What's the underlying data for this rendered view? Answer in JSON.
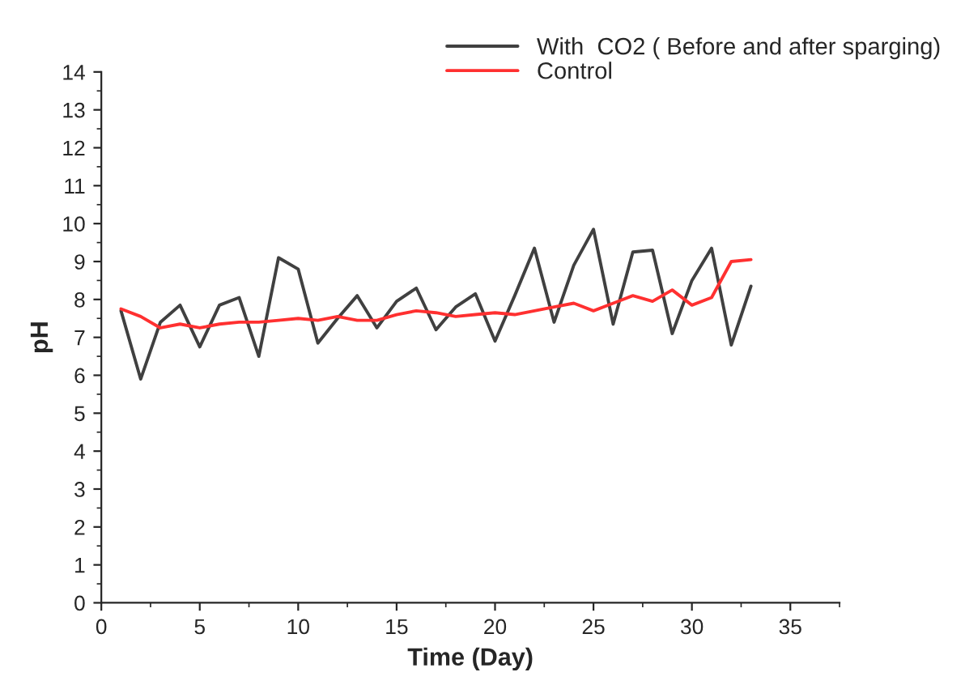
{
  "chart_data": {
    "type": "line",
    "xlabel": "Time (Day)",
    "ylabel": "pH",
    "x": [
      1,
      2,
      3,
      4,
      5,
      6,
      7,
      8,
      9,
      10,
      11,
      12,
      13,
      14,
      15,
      16,
      17,
      18,
      19,
      20,
      21,
      22,
      23,
      24,
      25,
      26,
      27,
      28,
      29,
      30,
      31,
      32,
      33
    ],
    "series": [
      {
        "name": "With  CO2 ( Before and after sparging)",
        "color": "#404040",
        "values": [
          7.7,
          5.9,
          7.4,
          7.85,
          6.75,
          7.85,
          8.05,
          6.5,
          9.1,
          8.8,
          6.85,
          7.5,
          8.1,
          7.25,
          7.95,
          8.3,
          7.2,
          7.8,
          8.15,
          6.9,
          8.1,
          9.35,
          7.4,
          8.9,
          9.85,
          7.35,
          9.25,
          9.3,
          7.1,
          8.5,
          9.35,
          6.8,
          8.35
        ]
      },
      {
        "name": "Control",
        "color": "#ff3030",
        "values": [
          7.75,
          7.55,
          7.25,
          7.35,
          7.25,
          7.35,
          7.4,
          7.4,
          7.45,
          7.5,
          7.45,
          7.55,
          7.45,
          7.45,
          7.6,
          7.7,
          7.65,
          7.55,
          7.6,
          7.65,
          7.6,
          7.7,
          7.8,
          7.9,
          7.7,
          7.9,
          8.1,
          7.95,
          8.25,
          7.85,
          8.05,
          9.0,
          9.05
        ]
      }
    ],
    "xlim": [
      0,
      37.5
    ],
    "xticks": [
      0,
      5,
      10,
      15,
      20,
      25,
      30,
      35
    ],
    "ylim": [
      0,
      14
    ],
    "yticks": [
      0,
      1,
      2,
      3,
      4,
      5,
      6,
      7,
      8,
      9,
      10,
      11,
      12,
      13,
      14
    ],
    "legend": "top right",
    "grid": false,
    "line_style": "solid",
    "marker": "none"
  }
}
